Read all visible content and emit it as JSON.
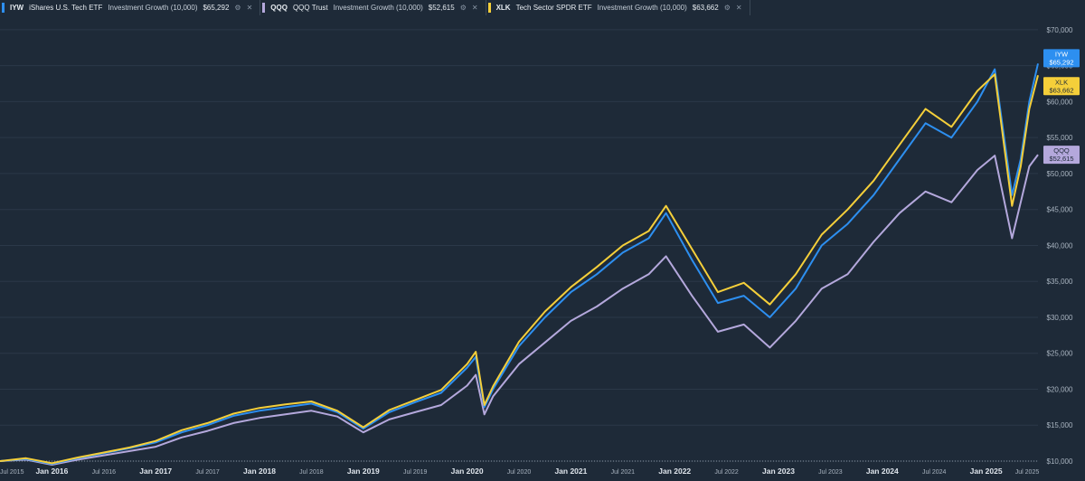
{
  "legend": [
    {
      "ticker": "IYW",
      "name": "iShares U.S. Tech ETF",
      "metric": "Investment Growth (10,000)",
      "value": "$65,292",
      "color": "#2d8ff0"
    },
    {
      "ticker": "QQQ",
      "name": "QQQ Trust",
      "metric": "Investment Growth (10,000)",
      "value": "$52,615",
      "color": "#b4a8dc"
    },
    {
      "ticker": "XLK",
      "name": "Tech Sector SPDR ETF",
      "metric": "Investment Growth (10,000)",
      "value": "$63,662",
      "color": "#f5cf3a"
    }
  ],
  "icons": {
    "settings": "settings-icon",
    "close": "close-icon"
  },
  "end_labels": [
    {
      "ticker": "IYW",
      "value": "$65,292",
      "color": "#2d8ff0",
      "text_color": "#ffffff"
    },
    {
      "ticker": "XLK",
      "value": "$63,662",
      "color": "#f5cf3a",
      "text_color": "#1e2a38"
    },
    {
      "ticker": "QQQ",
      "value": "$52,615",
      "color": "#b4a8dc",
      "text_color": "#1e2a38"
    }
  ],
  "chart_data": {
    "type": "line",
    "title": "",
    "xlabel": "",
    "ylabel": "",
    "xlim": [
      "2015-07",
      "2025-07"
    ],
    "ylim": [
      10000,
      72000
    ],
    "x_ticks": [
      {
        "date": "2015-07",
        "label": "Jul 2015",
        "major": false
      },
      {
        "date": "2016-01",
        "label": "Jan 2016",
        "major": true
      },
      {
        "date": "2016-07",
        "label": "Jul 2016",
        "major": false
      },
      {
        "date": "2017-01",
        "label": "Jan 2017",
        "major": true
      },
      {
        "date": "2017-07",
        "label": "Jul 2017",
        "major": false
      },
      {
        "date": "2018-01",
        "label": "Jan 2018",
        "major": true
      },
      {
        "date": "2018-07",
        "label": "Jul 2018",
        "major": false
      },
      {
        "date": "2019-01",
        "label": "Jan 2019",
        "major": true
      },
      {
        "date": "2019-07",
        "label": "Jul 2019",
        "major": false
      },
      {
        "date": "2020-01",
        "label": "Jan 2020",
        "major": true
      },
      {
        "date": "2020-07",
        "label": "Jul 2020",
        "major": false
      },
      {
        "date": "2021-01",
        "label": "Jan 2021",
        "major": true
      },
      {
        "date": "2021-07",
        "label": "Jul 2021",
        "major": false
      },
      {
        "date": "2022-01",
        "label": "Jan 2022",
        "major": true
      },
      {
        "date": "2022-07",
        "label": "Jul 2022",
        "major": false
      },
      {
        "date": "2023-01",
        "label": "Jan 2023",
        "major": true
      },
      {
        "date": "2023-07",
        "label": "Jul 2023",
        "major": false
      },
      {
        "date": "2024-01",
        "label": "Jan 2024",
        "major": true
      },
      {
        "date": "2024-07",
        "label": "Jul 2024",
        "major": false
      },
      {
        "date": "2025-01",
        "label": "Jan 2025",
        "major": true
      },
      {
        "date": "2025-07",
        "label": "Jul 2025",
        "major": false
      }
    ],
    "y_ticks": [
      {
        "value": 10000,
        "label": "$10,000"
      },
      {
        "value": 15000,
        "label": "$15,000"
      },
      {
        "value": 20000,
        "label": "$20,000"
      },
      {
        "value": 25000,
        "label": "$25,000"
      },
      {
        "value": 30000,
        "label": "$30,000"
      },
      {
        "value": 35000,
        "label": "$35,000"
      },
      {
        "value": 40000,
        "label": "$40,000"
      },
      {
        "value": 45000,
        "label": "$45,000"
      },
      {
        "value": 50000,
        "label": "$50,000"
      },
      {
        "value": 55000,
        "label": "$55,000"
      },
      {
        "value": 60000,
        "label": "$60,000"
      },
      {
        "value": 65000,
        "label": "$65,000"
      },
      {
        "value": 70000,
        "label": "$70,000"
      }
    ],
    "baseline": 10000,
    "x": [
      "2015-07",
      "2015-10",
      "2016-01",
      "2016-04",
      "2016-07",
      "2016-10",
      "2017-01",
      "2017-04",
      "2017-07",
      "2017-10",
      "2018-01",
      "2018-04",
      "2018-07",
      "2018-10",
      "2019-01",
      "2019-04",
      "2019-07",
      "2019-10",
      "2020-01",
      "2020-02",
      "2020-03",
      "2020-04",
      "2020-07",
      "2020-10",
      "2021-01",
      "2021-04",
      "2021-07",
      "2021-10",
      "2021-12",
      "2022-03",
      "2022-06",
      "2022-09",
      "2022-12",
      "2023-03",
      "2023-06",
      "2023-09",
      "2023-12",
      "2024-03",
      "2024-06",
      "2024-09",
      "2024-12",
      "2025-02",
      "2025-04",
      "2025-05",
      "2025-06",
      "2025-07"
    ],
    "series": [
      {
        "name": "IYW",
        "color": "#2d8ff0",
        "values": [
          10000,
          10300,
          9600,
          10400,
          11100,
          11800,
          12600,
          14000,
          15000,
          16300,
          17000,
          17500,
          18000,
          16800,
          14500,
          16800,
          18200,
          19500,
          23000,
          24500,
          17500,
          20000,
          26000,
          30000,
          33500,
          36000,
          39000,
          41000,
          44500,
          38000,
          32000,
          33000,
          30000,
          34000,
          40000,
          43000,
          47000,
          52000,
          57000,
          55000,
          60000,
          64500,
          47000,
          52000,
          60000,
          65292
        ]
      },
      {
        "name": "QQQ",
        "color": "#b4a8dc",
        "values": [
          10000,
          10200,
          9500,
          10200,
          10800,
          11400,
          12000,
          13300,
          14200,
          15300,
          16000,
          16500,
          17000,
          16200,
          14000,
          15800,
          16800,
          17800,
          20500,
          22000,
          16500,
          19000,
          23500,
          26500,
          29500,
          31500,
          34000,
          36000,
          38500,
          33000,
          28000,
          29000,
          25800,
          29500,
          34000,
          36000,
          40500,
          44500,
          47500,
          46000,
          50500,
          52500,
          41000,
          46000,
          51000,
          52615
        ]
      },
      {
        "name": "XLK",
        "color": "#f5cf3a",
        "values": [
          10000,
          10400,
          9700,
          10500,
          11200,
          11900,
          12800,
          14300,
          15300,
          16600,
          17400,
          17900,
          18300,
          17000,
          14700,
          17100,
          18500,
          19900,
          23500,
          25200,
          17800,
          20400,
          26600,
          30800,
          34200,
          37000,
          40000,
          42000,
          45500,
          39500,
          33500,
          34800,
          31800,
          36000,
          41500,
          45000,
          49000,
          54000,
          59000,
          56500,
          61500,
          63800,
          45500,
          51000,
          59000,
          63662
        ]
      }
    ]
  }
}
